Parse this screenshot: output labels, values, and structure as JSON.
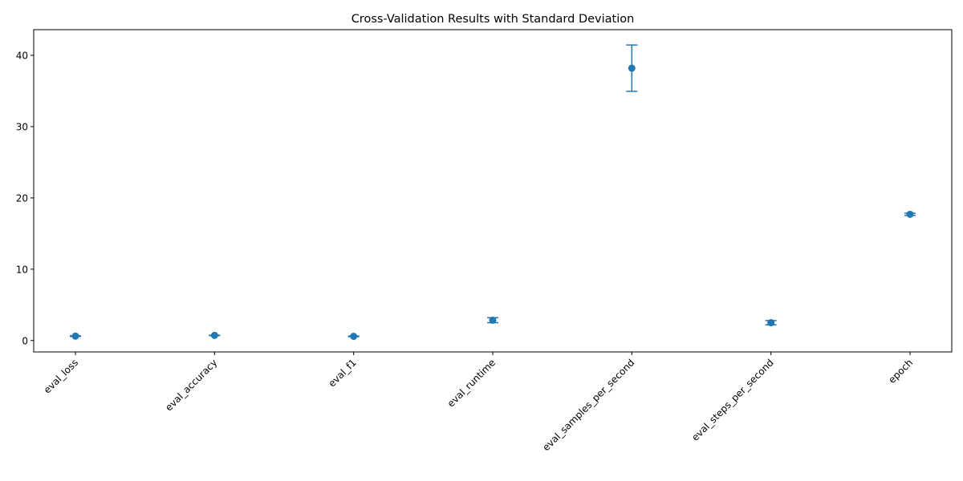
{
  "chart_data": {
    "type": "scatter",
    "title": "Cross-Validation Results with Standard Deviation",
    "xlabel": "",
    "ylabel": "",
    "categories": [
      "eval_loss",
      "eval_accuracy",
      "eval_f1",
      "eval_runtime",
      "eval_samples_per_second",
      "eval_steps_per_second",
      "epoch"
    ],
    "series": [
      {
        "values": [
          0.62,
          0.72,
          0.59,
          2.85,
          38.2,
          2.5,
          17.7
        ],
        "errors": [
          0.05,
          0.03,
          0.05,
          0.35,
          3.25,
          0.3,
          0.15
        ]
      }
    ],
    "ylim": [
      -1.6,
      43.6
    ],
    "y_ticks": [
      0,
      10,
      20,
      30,
      40
    ],
    "x_tick_rotation": 45,
    "grid": false,
    "legend": "none",
    "marker": "circle",
    "error_bar_capsize": true,
    "colors": {
      "series": "#1f77b4",
      "axes": "#000000",
      "background": "#ffffff"
    }
  }
}
